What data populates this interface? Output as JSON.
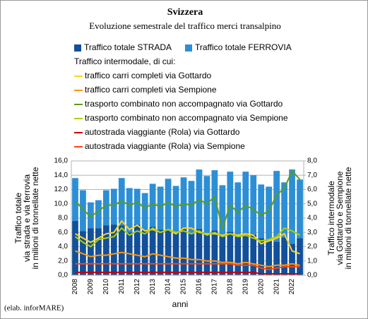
{
  "chart_data": {
    "type": "bar",
    "stacked": true,
    "title": "Svizzera",
    "subtitle": "Evoluzione semestrale del traffico merci transalpino",
    "legend_heading": "Traffico intermodale, di cui:",
    "ylabel": [
      "Traffico totale",
      "via strada e via ferrovia",
      "in milioni di tonnellate nette"
    ],
    "y2label": [
      "Traffico intermodale",
      "via Gottardo e Sempione",
      "in milioni di tonnellate nette"
    ],
    "xlabel": "anni",
    "source": "(elab. inforMARE)",
    "grid": true,
    "categories": [
      "2008",
      null,
      "2009",
      null,
      "2010",
      null,
      "2011",
      null,
      "2012",
      null,
      "2013",
      null,
      "2014",
      null,
      "2015",
      null,
      "2016",
      null,
      "2017",
      null,
      "2018",
      null,
      "2019",
      null,
      "2020",
      null,
      "2021",
      null,
      "2022",
      null
    ],
    "ylim": [
      0,
      16
    ],
    "yticks": [
      {
        "value": 0,
        "label": "0,0"
      },
      {
        "value": 2,
        "label": "2,0"
      },
      {
        "value": 4,
        "label": "4,0"
      },
      {
        "value": 6,
        "label": "6,0"
      },
      {
        "value": 8,
        "label": "8,0"
      },
      {
        "value": 10,
        "label": "10,0"
      },
      {
        "value": 12,
        "label": "12,0"
      },
      {
        "value": 14,
        "label": "14,0"
      },
      {
        "value": 16,
        "label": "16,0"
      }
    ],
    "y2lim": [
      0,
      8
    ],
    "y2ticks": [
      {
        "value": 0,
        "label": "0,0"
      },
      {
        "value": 1,
        "label": "1,0"
      },
      {
        "value": 2,
        "label": "2,0"
      },
      {
        "value": 3,
        "label": "3,0"
      },
      {
        "value": 4,
        "label": "4,0"
      },
      {
        "value": 5,
        "label": "5,0"
      },
      {
        "value": 6,
        "label": "6,0"
      },
      {
        "value": 7,
        "label": "7,0"
      },
      {
        "value": 8,
        "label": "8,0"
      }
    ],
    "series": [
      {
        "name": "Traffico totale STRADA",
        "type": "bar",
        "color": "#12509a",
        "values": [
          7.6,
          6.2,
          6.6,
          6.6,
          7.0,
          7.1,
          7.0,
          6.0,
          7.1,
          6.3,
          6.8,
          6.4,
          6.3,
          6.0,
          6.5,
          5.9,
          6.5,
          5.8,
          6.3,
          5.7,
          6.1,
          5.7,
          5.8,
          5.7,
          5.2,
          4.8,
          4.7,
          5.3,
          4.4,
          5.2
        ]
      },
      {
        "name": "Traffico totale FERROVIA",
        "type": "bar",
        "color": "#2c8fd6",
        "values": [
          6.0,
          5.7,
          3.6,
          3.9,
          4.9,
          5.0,
          6.6,
          6.2,
          5.0,
          5.2,
          6.0,
          6.0,
          7.2,
          6.5,
          7.2,
          7.3,
          8.3,
          8.1,
          8.4,
          6.9,
          8.4,
          7.3,
          8.7,
          8.3,
          7.5,
          7.6,
          9.9,
          7.7,
          10.4,
          8.2
        ]
      },
      {
        "name": "traffico carri completi via Gottardo",
        "type": "line",
        "axis": "y2",
        "color": "#ffd320",
        "values": [
          2.9,
          2.6,
          2.3,
          2.6,
          2.9,
          3.0,
          3.8,
          3.2,
          3.5,
          3.1,
          3.2,
          3.0,
          3.2,
          2.9,
          3.3,
          3.3,
          3.0,
          2.9,
          2.9,
          2.8,
          2.9,
          2.8,
          2.9,
          2.8,
          2.2,
          2.4,
          2.6,
          2.9,
          1.7,
          1.5
        ]
      },
      {
        "name": "traffico carri completi via Sempione",
        "type": "line",
        "axis": "y2",
        "color": "#ff950e",
        "values": [
          1.7,
          1.5,
          1.3,
          1.4,
          1.4,
          1.5,
          1.6,
          1.5,
          1.4,
          1.3,
          1.5,
          1.4,
          1.3,
          1.2,
          1.2,
          1.1,
          1.1,
          1.0,
          1.0,
          0.9,
          0.9,
          0.8,
          0.9,
          0.8,
          0.7,
          0.6,
          0.7,
          0.7,
          0.8,
          0.7
        ]
      },
      {
        "name": "trasporto combinato non accompagnato via Gottardo",
        "type": "line",
        "axis": "y2",
        "color": "#579d1c",
        "values": [
          5.2,
          4.6,
          4.1,
          4.5,
          4.9,
          4.9,
          5.2,
          4.9,
          5.1,
          4.7,
          5.0,
          4.8,
          5.1,
          4.8,
          5.0,
          4.9,
          5.3,
          5.0,
          5.5,
          3.3,
          4.9,
          4.4,
          4.9,
          4.6,
          4.2,
          4.5,
          5.6,
          6.1,
          7.3,
          6.7
        ]
      },
      {
        "name": "trasporto combinato non accompagnato via Sempione",
        "type": "line",
        "axis": "y2",
        "color": "#aecf00",
        "values": [
          2.7,
          2.3,
          2.0,
          2.5,
          2.6,
          2.7,
          3.3,
          2.8,
          3.1,
          2.9,
          3.3,
          3.0,
          3.2,
          3.0,
          3.1,
          2.9,
          3.1,
          2.8,
          3.0,
          2.7,
          2.9,
          2.7,
          2.8,
          2.6,
          2.4,
          2.5,
          2.7,
          3.3,
          3.1,
          2.8
        ]
      },
      {
        "name": "autostrada viaggiante (Rola) via Gottardo",
        "type": "line",
        "axis": "y2",
        "color": "#c5000b",
        "values": [
          0.2,
          0.2,
          0.2,
          0.2,
          0.2,
          0.2,
          0.2,
          0.2,
          0.2,
          0.2,
          0.2,
          0.2,
          0.2,
          0.2,
          0.2,
          0.2,
          0.2,
          0.2,
          0.2,
          0.2,
          0.2,
          0.2,
          0.2,
          0.2,
          0.1,
          0.1,
          0.1,
          0.1,
          0.1,
          0.1
        ]
      },
      {
        "name": "autostrada viaggiante (Rola) via Sempione",
        "type": "line",
        "axis": "y2",
        "color": "#ff420e",
        "values": [
          0.8,
          0.8,
          0.8,
          0.8,
          0.8,
          0.8,
          0.8,
          0.8,
          0.8,
          0.8,
          0.8,
          0.8,
          0.8,
          0.8,
          0.8,
          0.8,
          0.8,
          0.8,
          0.8,
          0.8,
          0.8,
          0.7,
          0.7,
          0.7,
          0.5,
          0.4,
          0.5,
          0.6,
          0.6,
          0.6
        ]
      }
    ]
  }
}
